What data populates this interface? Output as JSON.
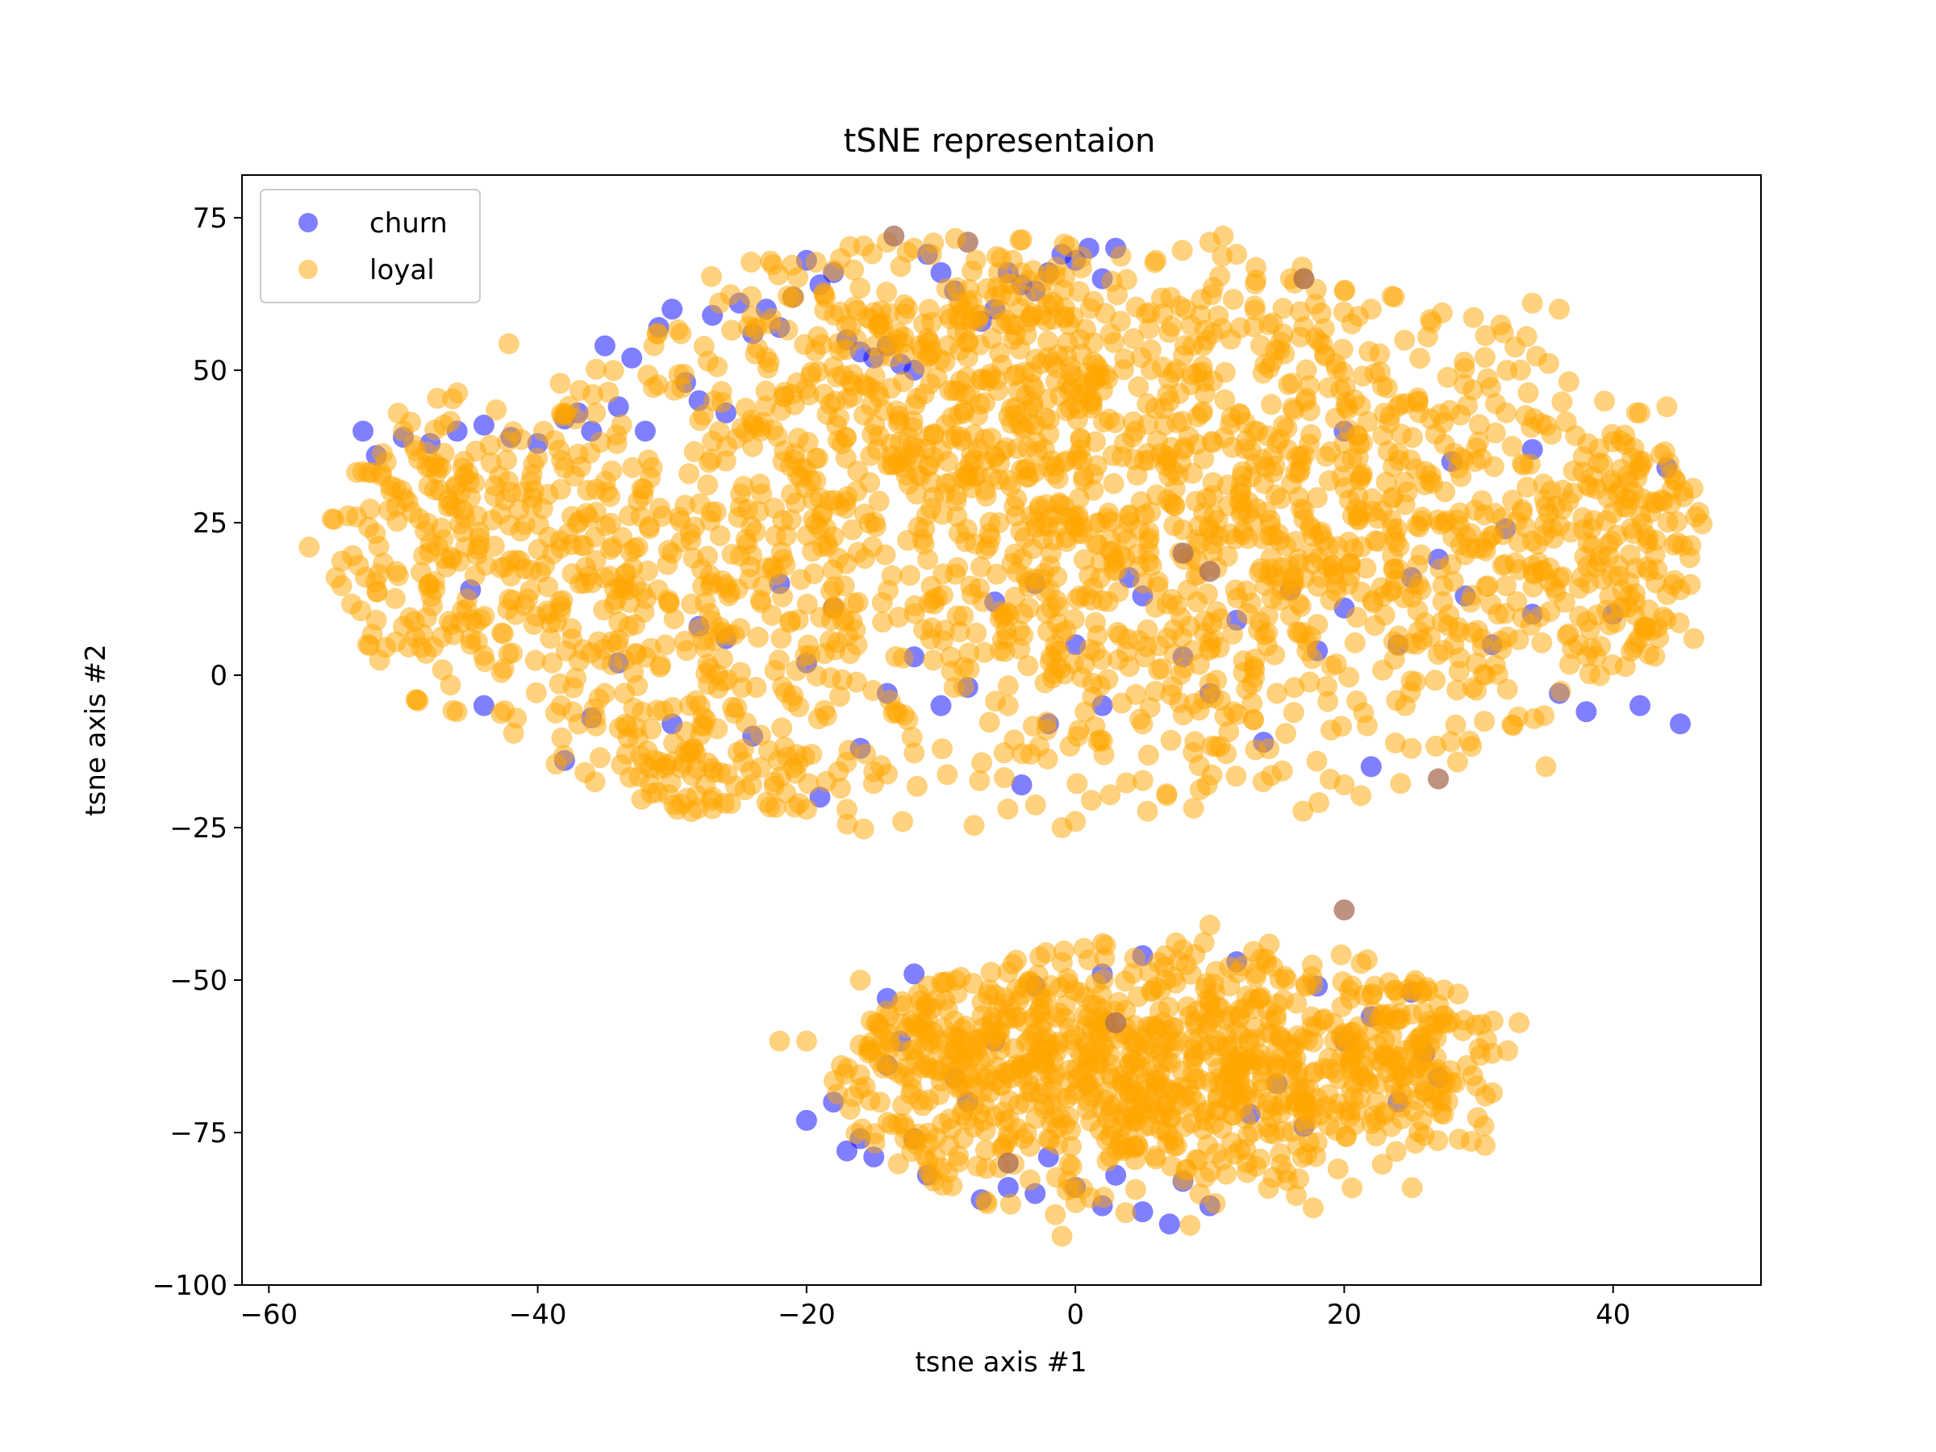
{
  "chart_data": {
    "type": "scatter",
    "title": "tSNE representaion",
    "xlabel": "tsne axis #1",
    "ylabel": "tsne axis #2",
    "xlim": [
      -62,
      51
    ],
    "ylim": [
      -100,
      82
    ],
    "xticks": [
      -60,
      -40,
      -20,
      0,
      20,
      40
    ],
    "xtick_labels": [
      "−60",
      "−40",
      "−20",
      "0",
      "20",
      "40"
    ],
    "yticks": [
      75,
      50,
      25,
      0,
      -25,
      -50,
      -75,
      -100
    ],
    "ytick_labels": [
      "75",
      "50",
      "25",
      "0",
      "−25",
      "−50",
      "−75",
      "−100"
    ],
    "grid": false,
    "legend_position": "top-left",
    "marker_alpha": 0.5,
    "series": [
      {
        "name": "churn",
        "color": "#0000ff",
        "points": [
          [
            -27,
            59
          ],
          [
            -25,
            61
          ],
          [
            -24,
            56
          ],
          [
            -23,
            60
          ],
          [
            -22,
            57
          ],
          [
            -21,
            62
          ],
          [
            -20,
            68
          ],
          [
            -19,
            64
          ],
          [
            -18,
            66
          ],
          [
            -17,
            55
          ],
          [
            -16,
            53
          ],
          [
            -15,
            52
          ],
          [
            -14,
            54
          ],
          [
            -13,
            51
          ],
          [
            -12,
            50
          ],
          [
            -11,
            69
          ],
          [
            -10,
            66
          ],
          [
            -9,
            63
          ],
          [
            -8,
            71
          ],
          [
            -7,
            58
          ],
          [
            -6,
            60
          ],
          [
            -5,
            66
          ],
          [
            -4,
            64
          ],
          [
            -3,
            63
          ],
          [
            -2,
            66
          ],
          [
            -1,
            69
          ],
          [
            0,
            68
          ],
          [
            1,
            70
          ],
          [
            2,
            65
          ],
          [
            3,
            70
          ],
          [
            -30,
            60
          ],
          [
            -31,
            57
          ],
          [
            -29,
            48
          ],
          [
            -28,
            45
          ],
          [
            -26,
            43
          ],
          [
            -32,
            40
          ],
          [
            -34,
            44
          ],
          [
            -36,
            40
          ],
          [
            -38,
            42
          ],
          [
            -40,
            38
          ],
          [
            -42,
            39
          ],
          [
            -44,
            41
          ],
          [
            -46,
            40
          ],
          [
            -48,
            38
          ],
          [
            -50,
            39
          ],
          [
            -52,
            36
          ],
          [
            -53,
            40
          ],
          [
            -35,
            54
          ],
          [
            -33,
            52
          ],
          [
            -37,
            43
          ],
          [
            -45,
            14
          ],
          [
            -44,
            -5
          ],
          [
            -38,
            -14
          ],
          [
            -36,
            -7
          ],
          [
            -34,
            2
          ],
          [
            -30,
            -8
          ],
          [
            -28,
            8
          ],
          [
            -26,
            6
          ],
          [
            -24,
            -10
          ],
          [
            -22,
            15
          ],
          [
            -20,
            2
          ],
          [
            -19,
            -20
          ],
          [
            -18,
            11
          ],
          [
            -16,
            -12
          ],
          [
            -14,
            -3
          ],
          [
            -12,
            3
          ],
          [
            -10,
            -5
          ],
          [
            -8,
            -2
          ],
          [
            -6,
            12
          ],
          [
            -4,
            -18
          ],
          [
            -3,
            15
          ],
          [
            -2,
            -8
          ],
          [
            0,
            5
          ],
          [
            2,
            -5
          ],
          [
            4,
            16
          ],
          [
            5,
            13
          ],
          [
            8,
            3
          ],
          [
            10,
            -3
          ],
          [
            12,
            9
          ],
          [
            14,
            -11
          ],
          [
            16,
            14
          ],
          [
            18,
            4
          ],
          [
            20,
            11
          ],
          [
            22,
            -15
          ],
          [
            24,
            5
          ],
          [
            25,
            16
          ],
          [
            27,
            19
          ],
          [
            29,
            13
          ],
          [
            31,
            5
          ],
          [
            34,
            10
          ],
          [
            36,
            -3
          ],
          [
            38,
            -6
          ],
          [
            40,
            10
          ],
          [
            42,
            -5
          ],
          [
            44,
            34
          ],
          [
            45,
            -8
          ],
          [
            28,
            35
          ],
          [
            32,
            24
          ],
          [
            34,
            37
          ],
          [
            20,
            40
          ],
          [
            -20,
            -73
          ],
          [
            -18,
            -70
          ],
          [
            -17,
            -78
          ],
          [
            -16,
            -76
          ],
          [
            -15,
            -79
          ],
          [
            -14,
            -64
          ],
          [
            -13,
            -60
          ],
          [
            -12,
            -76
          ],
          [
            -11,
            -82
          ],
          [
            -9,
            -66
          ],
          [
            -7,
            -86
          ],
          [
            -5,
            -84
          ],
          [
            -3,
            -85
          ],
          [
            -2,
            -79
          ],
          [
            0,
            -84
          ],
          [
            2,
            -87
          ],
          [
            3,
            -82
          ],
          [
            5,
            -88
          ],
          [
            7,
            -90
          ],
          [
            8,
            -83
          ],
          [
            10,
            -87
          ],
          [
            13,
            -72
          ],
          [
            15,
            -67
          ],
          [
            17,
            -74
          ],
          [
            20,
            -60
          ],
          [
            22,
            -56
          ],
          [
            24,
            -70
          ],
          [
            25,
            -52
          ],
          [
            27,
            -66
          ],
          [
            -12,
            -49
          ],
          [
            -14,
            -53
          ],
          [
            2,
            -49
          ],
          [
            5,
            -46
          ],
          [
            -3,
            -51
          ],
          [
            -6,
            -60
          ],
          [
            -8,
            -70
          ],
          [
            12,
            -47
          ],
          [
            18,
            -51
          ],
          [
            26,
            -62
          ]
        ]
      },
      {
        "name": "loyal",
        "color": "#ffa500",
        "clusters": [
          {
            "cx": -47,
            "cy": 22,
            "sx": 6,
            "sy": 14,
            "n": 210
          },
          {
            "cx": -33,
            "cy": 12,
            "sx": 6,
            "sy": 18,
            "n": 230
          },
          {
            "cx": -20,
            "cy": 24,
            "sx": 7,
            "sy": 22,
            "n": 280
          },
          {
            "cx": -10,
            "cy": 38,
            "sx": 6,
            "sy": 20,
            "n": 200
          },
          {
            "cx": 0,
            "cy": 14,
            "sx": 6,
            "sy": 22,
            "n": 250
          },
          {
            "cx": 0,
            "cy": 50,
            "sx": 7,
            "sy": 12,
            "n": 150
          },
          {
            "cx": 10,
            "cy": 24,
            "sx": 6,
            "sy": 24,
            "n": 260
          },
          {
            "cx": 20,
            "cy": 30,
            "sx": 6,
            "sy": 22,
            "n": 230
          },
          {
            "cx": 30,
            "cy": 22,
            "sx": 6,
            "sy": 22,
            "n": 220
          },
          {
            "cx": 41,
            "cy": 20,
            "sx": 4,
            "sy": 16,
            "n": 150
          },
          {
            "cx": -12,
            "cy": 60,
            "sx": 8,
            "sy": 7,
            "n": 70
          },
          {
            "cx": -25,
            "cy": -15,
            "sx": 6,
            "sy": 5,
            "n": 80
          },
          {
            "cx": 2,
            "cy": -65,
            "sx": 9,
            "sy": 11,
            "n": 560
          },
          {
            "cx": 18,
            "cy": -64,
            "sx": 7,
            "sy": 11,
            "n": 260
          },
          {
            "cx": -12,
            "cy": -62,
            "sx": 5,
            "sy": 9,
            "n": 120
          },
          {
            "cx": 27,
            "cy": -58,
            "sx": 3,
            "sy": 8,
            "n": 60
          }
        ],
        "points": [
          [
            -57,
            21
          ],
          [
            -55,
            16
          ],
          [
            -52,
            9
          ],
          [
            -50,
            8
          ],
          [
            -49,
            -4
          ],
          [
            -46,
            -6
          ],
          [
            -45,
            6
          ],
          [
            -47,
            41
          ],
          [
            -50,
            40
          ],
          [
            -20,
            -22
          ],
          [
            -1,
            -25
          ],
          [
            0,
            -24
          ],
          [
            10,
            -41
          ],
          [
            8,
            -45
          ],
          [
            -1,
            -92
          ],
          [
            -16,
            -50
          ],
          [
            -20,
            -60
          ],
          [
            -22,
            -60
          ],
          [
            33,
            -57
          ],
          [
            31,
            -62
          ],
          [
            46,
            6
          ],
          [
            45,
            14
          ],
          [
            44,
            44
          ],
          [
            42,
            43
          ],
          [
            11,
            72
          ],
          [
            10,
            71
          ],
          [
            12,
            69
          ],
          [
            -8,
            71
          ],
          [
            -14,
            71
          ],
          [
            -13,
            67
          ],
          [
            -12,
            70
          ],
          [
            -6,
            62
          ],
          [
            6,
            68
          ],
          [
            16,
            65
          ],
          [
            17,
            65
          ],
          [
            20,
            63
          ],
          [
            22,
            60
          ],
          [
            34,
            61
          ],
          [
            36,
            60
          ],
          [
            20,
            -18
          ],
          [
            -42,
            30
          ],
          [
            -30,
            20
          ],
          [
            -35,
            -3
          ],
          [
            -27,
            -20
          ],
          [
            -17,
            -22
          ],
          [
            -5,
            -5
          ],
          [
            5,
            -8
          ],
          [
            15,
            -3
          ],
          [
            25,
            -12
          ],
          [
            35,
            -15
          ]
        ]
      }
    ],
    "overlap_points": [
      [
        -13.5,
        72
      ],
      [
        17,
        65
      ],
      [
        20,
        -38.5
      ],
      [
        27,
        -17
      ],
      [
        3,
        -57
      ],
      [
        10,
        17
      ],
      [
        8,
        20
      ],
      [
        -5,
        -80
      ]
    ]
  }
}
